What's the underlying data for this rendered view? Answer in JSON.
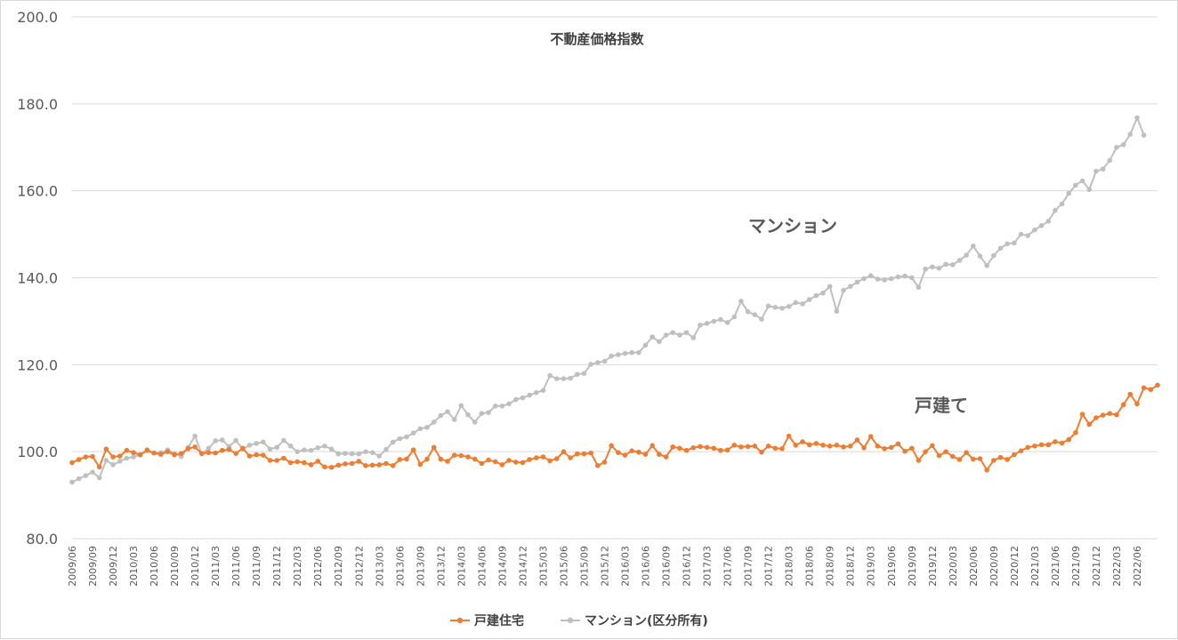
{
  "chart_data": {
    "type": "line",
    "title": "不動産価格指数",
    "xlabel": "",
    "ylabel": "",
    "ylim": [
      80,
      200
    ],
    "yticks": [
      "80.0",
      "100.0",
      "120.0",
      "140.0",
      "160.0",
      "180.0",
      "200.0"
    ],
    "x_start": "2009/06",
    "x_tick_labels": [
      "2009/06",
      "2009/09",
      "2009/12",
      "2010/03",
      "2010/06",
      "2010/09",
      "2010/12",
      "2011/03",
      "2011/06",
      "2011/09",
      "2011/12",
      "2012/03",
      "2012/06",
      "2012/09",
      "2012/12",
      "2013/03",
      "2013/06",
      "2013/09",
      "2013/12",
      "2014/03",
      "2014/06",
      "2014/09",
      "2014/12",
      "2015/03",
      "2015/06",
      "2015/09",
      "2015/12",
      "2016/03",
      "2016/06",
      "2016/09",
      "2016/12",
      "2017/03",
      "2017/06",
      "2017/09",
      "2017/12",
      "2018/03",
      "2018/06",
      "2018/09",
      "2018/12",
      "2019/03",
      "2019/06",
      "2019/09",
      "2019/12",
      "2020/03",
      "2020/06",
      "2020/09",
      "2020/12",
      "2021/03",
      "2021/06",
      "2021/09",
      "2021/12",
      "2022/03",
      "2022/06"
    ],
    "grid": true,
    "legend_position": "bottom",
    "annotations": [
      {
        "text": "マンション",
        "series": 1
      },
      {
        "text": "戸建て",
        "series": 0
      }
    ],
    "series": [
      {
        "name": "戸建住宅",
        "color": "#ED7D31",
        "values": [
          97.5,
          98.2,
          98.8,
          98.9,
          96.5,
          100.6,
          98.8,
          99.0,
          100.3,
          99.8,
          99.3,
          100.4,
          99.7,
          99.4,
          100.0,
          99.3,
          99.6,
          100.7,
          101.1,
          99.6,
          99.8,
          99.7,
          100.3,
          100.5,
          99.6,
          100.8,
          99.0,
          99.3,
          99.2,
          98.0,
          98.0,
          98.5,
          97.5,
          97.7,
          97.5,
          97.0,
          97.8,
          96.5,
          96.4,
          96.9,
          97.2,
          97.3,
          97.8,
          96.8,
          96.9,
          97.0,
          97.3,
          96.8,
          98.2,
          98.3,
          100.4,
          97.1,
          98.3,
          101.0,
          98.3,
          97.8,
          99.2,
          99.1,
          98.8,
          98.3,
          97.3,
          98.1,
          97.7,
          97.0,
          98.0,
          97.6,
          97.5,
          98.2,
          98.6,
          98.8,
          97.9,
          98.4,
          100.0,
          98.6,
          99.5,
          99.5,
          99.7,
          96.8,
          97.6,
          101.4,
          99.8,
          99.2,
          100.2,
          99.9,
          99.4,
          101.4,
          99.4,
          98.8,
          101.1,
          100.8,
          100.3,
          100.9,
          101.2,
          101.0,
          100.8,
          100.3,
          100.4,
          101.5,
          101.1,
          101.2,
          101.3,
          99.9,
          101.3,
          100.8,
          100.7,
          103.6,
          101.5,
          102.3,
          101.6,
          101.9,
          101.5,
          101.3,
          101.5,
          101.1,
          101.3,
          102.7,
          100.9,
          103.5,
          101.3,
          100.7,
          101.0,
          101.8,
          100.1,
          100.8,
          98.0,
          100.0,
          101.4,
          99.1,
          100.0,
          98.9,
          98.2,
          99.8,
          98.3,
          98.4,
          95.8,
          98.0,
          98.7,
          98.2,
          99.3,
          100.2,
          101.0,
          101.3,
          101.6,
          101.6,
          102.3,
          102.0,
          102.8,
          104.4,
          108.6,
          106.3,
          107.8,
          108.4,
          108.8,
          108.5,
          110.8,
          113.2,
          111.0,
          114.7,
          114.3,
          115.3
        ]
      },
      {
        "name": "マンション(区分所有)",
        "color": "#BFBFBF",
        "values": [
          93.0,
          93.8,
          94.5,
          95.3,
          94.0,
          98.0,
          97.0,
          97.8,
          98.5,
          98.8,
          99.3,
          100.2,
          99.7,
          99.8,
          100.4,
          99.6,
          98.9,
          101.0,
          103.6,
          99.5,
          100.8,
          102.5,
          102.7,
          101.2,
          102.6,
          100.6,
          101.5,
          101.9,
          102.2,
          100.6,
          101.0,
          102.6,
          101.3,
          100.0,
          100.4,
          100.3,
          100.9,
          101.3,
          100.6,
          99.5,
          99.6,
          99.5,
          99.5,
          100.0,
          99.8,
          99.0,
          100.5,
          102.2,
          103.0,
          103.4,
          104.3,
          105.3,
          105.6,
          106.8,
          108.3,
          109.2,
          107.4,
          110.6,
          108.5,
          106.8,
          108.8,
          109.0,
          110.5,
          110.5,
          111.0,
          112.0,
          112.4,
          113.0,
          113.6,
          114.1,
          117.5,
          116.8,
          116.8,
          116.9,
          117.8,
          118.0,
          120.1,
          120.5,
          120.8,
          122.0,
          122.3,
          122.6,
          122.8,
          122.8,
          124.5,
          126.4,
          125.3,
          126.8,
          127.4,
          126.8,
          127.4,
          126.2,
          129.1,
          129.5,
          130.0,
          130.4,
          129.7,
          131.0,
          134.6,
          132.2,
          131.5,
          130.5,
          133.5,
          133.2,
          133.0,
          133.4,
          134.3,
          134.0,
          135.0,
          135.9,
          136.5,
          138.0,
          132.3,
          137.1,
          138.0,
          139.0,
          139.8,
          140.5,
          139.7,
          139.5,
          139.8,
          140.2,
          140.4,
          140.0,
          137.8,
          142.0,
          142.5,
          142.2,
          143.1,
          143.0,
          144.0,
          145.2,
          147.3,
          145.0,
          142.8,
          145.1,
          146.8,
          147.8,
          148.0,
          150.0,
          149.7,
          151.0,
          152.0,
          153.0,
          155.5,
          157.0,
          159.4,
          161.3,
          162.3,
          160.3,
          164.5,
          165.0,
          167.0,
          170.0,
          170.6,
          173.0,
          176.8,
          172.8
        ]
      }
    ]
  }
}
